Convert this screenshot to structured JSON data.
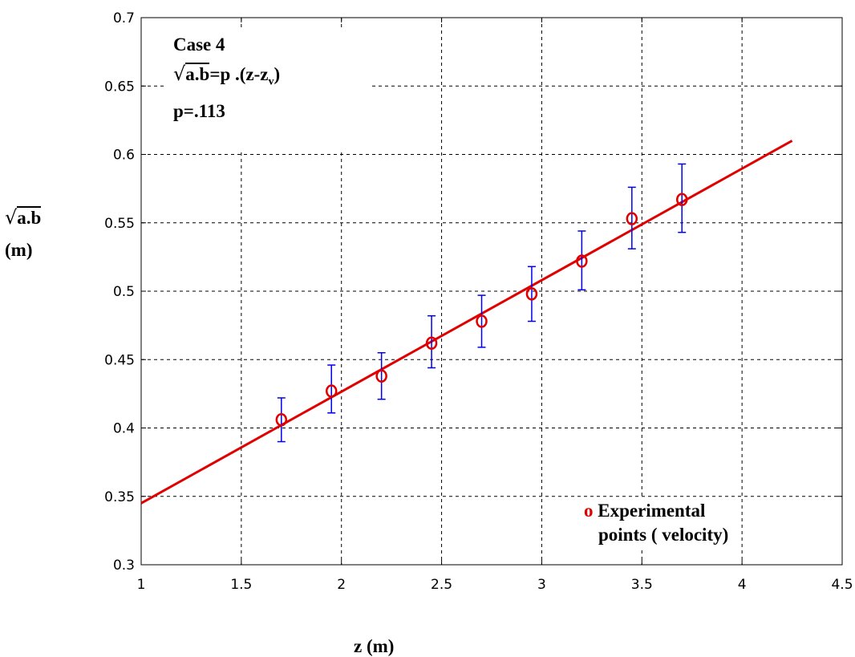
{
  "chart_data": {
    "type": "scatter",
    "xlabel": "z (m)",
    "ylabel": {
      "symbol": "√",
      "expr": "a.b",
      "unit": "(m)"
    },
    "xlim": [
      1,
      4.5
    ],
    "ylim": [
      0.3,
      0.7
    ],
    "x_ticks": [
      "1",
      "1.5",
      "2",
      "2.5",
      "3",
      "3.5",
      "4",
      "4.5"
    ],
    "y_ticks": [
      "0.3",
      "0.35",
      "0.4",
      "0.45",
      "0.5",
      "0.55",
      "0.6",
      "0.65",
      "0.7"
    ],
    "grid": true,
    "series": [
      {
        "name": "Experimental points ( velocity)",
        "marker": "o",
        "color": "#e00000",
        "errorbar_color": "#0000ee",
        "points": [
          {
            "x": 1.7,
            "y": 0.406,
            "err_low": 0.39,
            "err_high": 0.422
          },
          {
            "x": 1.95,
            "y": 0.427,
            "err_low": 0.411,
            "err_high": 0.446
          },
          {
            "x": 2.2,
            "y": 0.438,
            "err_low": 0.421,
            "err_high": 0.455
          },
          {
            "x": 2.45,
            "y": 0.462,
            "err_low": 0.444,
            "err_high": 0.482
          },
          {
            "x": 2.7,
            "y": 0.478,
            "err_low": 0.459,
            "err_high": 0.497
          },
          {
            "x": 2.95,
            "y": 0.498,
            "err_low": 0.478,
            "err_high": 0.518
          },
          {
            "x": 3.2,
            "y": 0.522,
            "err_low": 0.501,
            "err_high": 0.544
          },
          {
            "x": 3.45,
            "y": 0.553,
            "err_low": 0.531,
            "err_high": 0.576
          },
          {
            "x": 3.7,
            "y": 0.567,
            "err_low": 0.543,
            "err_high": 0.593
          }
        ]
      }
    ],
    "fit_line": {
      "color": "#e00000",
      "x": [
        1.0,
        4.25
      ],
      "y": [
        0.345,
        0.61
      ]
    },
    "annotation": {
      "case": "Case 4",
      "formula_sqrt": "√",
      "formula_expr": "a.b",
      "formula_rhs": "=p .(z-z",
      "formula_sub": "v",
      "formula_close": ")",
      "param": "p=.113"
    },
    "legend": {
      "marker": "o",
      "line1": "Experimental",
      "line2": "points ( velocity)",
      "placement": "bottom-right"
    }
  }
}
